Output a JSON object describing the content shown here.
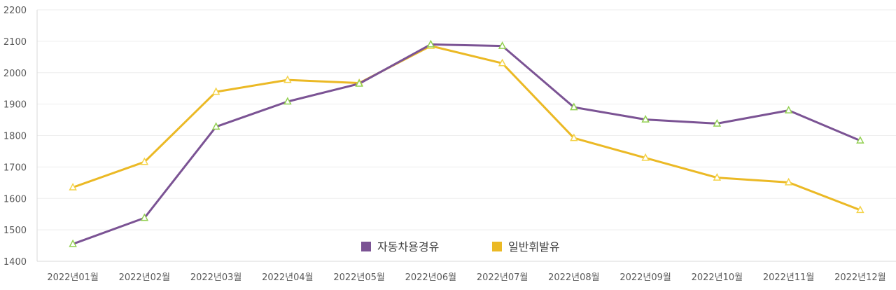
{
  "chart_data": {
    "type": "line",
    "categories": [
      "2022년01월",
      "2022년02월",
      "2022년03월",
      "2022년04월",
      "2022년05월",
      "2022년06월",
      "2022년07월",
      "2022년08월",
      "2022년09월",
      "2022년10월",
      "2022년11월",
      "2022년12월"
    ],
    "series": [
      {
        "name": "자동차용경유",
        "color": "#7b5394",
        "values": [
          1455,
          1538,
          1828,
          1908,
          1965,
          2090,
          2085,
          1890,
          1851,
          1838,
          1880,
          1784
        ]
      },
      {
        "name": "일반휘발유",
        "color": "#ebb925",
        "values": [
          1635,
          1716,
          1939,
          1977,
          1967,
          2085,
          2030,
          1792,
          1729,
          1666,
          1651,
          1563
        ]
      }
    ],
    "marker_color": "#92d050",
    "y_ticks": [
      "1400",
      "1500",
      "1600",
      "1700",
      "1800",
      "1900",
      "2000",
      "2100",
      "2200"
    ],
    "ylim": [
      1400,
      2200
    ],
    "grid": true,
    "legend": "bottom-center"
  }
}
